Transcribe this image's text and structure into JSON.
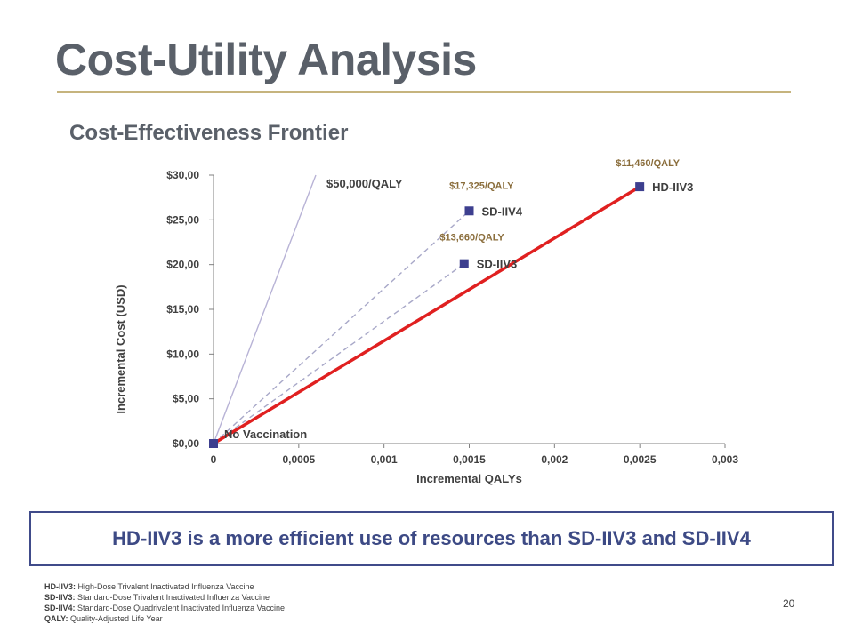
{
  "slide": {
    "title": "Cost-Utility Analysis",
    "subtitle": "Cost-Effectiveness Frontier",
    "callout": "HD-IIV3 is a more efficient use of resources than SD-IIV3 and SD-IIV4",
    "page_number": "20",
    "footnotes": [
      {
        "abbr": "HD-IIV3:",
        "text": "High-Dose Trivalent Inactivated Influenza Vaccine"
      },
      {
        "abbr": "SD-IIV3:",
        "text": "Standard-Dose Trivalent Inactivated Influenza Vaccine"
      },
      {
        "abbr": "SD-IIV4:",
        "text": "Standard-Dose Quadrivalent Inactivated Influenza Vaccine"
      },
      {
        "abbr": "QALY:",
        "text": "Quality-Adjusted Life Year"
      }
    ]
  },
  "chart_data": {
    "type": "scatter",
    "xlabel": "Incremental QALYs",
    "ylabel": "Incremental Cost (USD)",
    "xlim": [
      0,
      0.003
    ],
    "ylim": [
      0,
      30
    ],
    "x_ticks": [
      0,
      0.0005,
      0.001,
      0.0015,
      0.002,
      0.0025,
      0.003
    ],
    "x_tick_labels": [
      "0",
      "0,0005",
      "0,001",
      "0,0015",
      "0,002",
      "0,0025",
      "0,003"
    ],
    "y_ticks": [
      0,
      5,
      10,
      15,
      20,
      25,
      30
    ],
    "y_tick_labels": [
      "$0,00",
      "$5,00",
      "$10,00",
      "$15,00",
      "$20,00",
      "$25,00",
      "$30,00"
    ],
    "grid": false,
    "points": [
      {
        "label": "No Vaccination",
        "x": 0,
        "y": 0
      },
      {
        "label": "SD-IIV3",
        "x": 0.00147,
        "y": 20.1
      },
      {
        "label": "SD-IIV4",
        "x": 0.0015,
        "y": 26.0
      },
      {
        "label": "HD-IIV3",
        "x": 0.0025,
        "y": 28.7
      }
    ],
    "lines": [
      {
        "label": "$50,000/QALY",
        "from": [
          0,
          0
        ],
        "to": [
          0.0006,
          30
        ],
        "style": "solid",
        "color": "#b8b3d6"
      },
      {
        "label": "$13,660/QALY",
        "from": [
          0,
          0
        ],
        "to": [
          0.00147,
          20.1
        ],
        "style": "dashed",
        "color": "#a8a8c8"
      },
      {
        "label": "$17,325/QALY",
        "from": [
          0,
          0
        ],
        "to": [
          0.0015,
          26.0
        ],
        "style": "dashed",
        "color": "#a8a8c8"
      },
      {
        "label": "$11,460/QALY",
        "from": [
          0,
          0
        ],
        "to": [
          0.0025,
          28.7
        ],
        "style": "solid",
        "color": "#e02020"
      }
    ],
    "marker_color": "#3d3f8f",
    "ratio_label_color": "#8a6d3b"
  }
}
